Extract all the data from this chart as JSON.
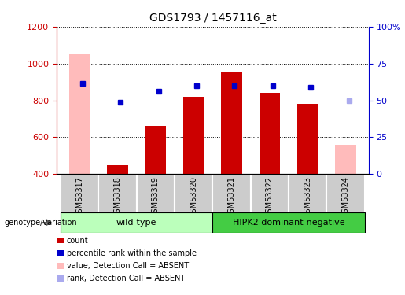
{
  "title": "GDS1793 / 1457116_at",
  "samples": [
    "GSM53317",
    "GSM53318",
    "GSM53319",
    "GSM53320",
    "GSM53321",
    "GSM53322",
    "GSM53323",
    "GSM53324"
  ],
  "bar_values": [
    null,
    450,
    660,
    820,
    950,
    840,
    780,
    null
  ],
  "absent_values": [
    1050,
    null,
    null,
    null,
    null,
    null,
    null,
    560
  ],
  "absent_color": "#ffbbbb",
  "bar_color": "#cc0000",
  "percentile_values": [
    890,
    790,
    850,
    880,
    880,
    880,
    870,
    null
  ],
  "percentile_absent_values": [
    null,
    null,
    null,
    null,
    null,
    null,
    null,
    800
  ],
  "percentile_color": "#0000cc",
  "percentile_absent_color": "#aaaaee",
  "ylim_left": [
    400,
    1200
  ],
  "ylim_right": [
    0,
    100
  ],
  "yticks_left": [
    400,
    600,
    800,
    1000,
    1200
  ],
  "yticks_right": [
    0,
    25,
    50,
    75,
    100
  ],
  "ytick_labels_right": [
    "0",
    "25",
    "50",
    "75",
    "100%"
  ],
  "groups": [
    {
      "label": "wild-type",
      "start": 0,
      "end": 3,
      "color": "#bbffbb"
    },
    {
      "label": "HIPK2 dominant-negative",
      "start": 4,
      "end": 7,
      "color": "#44cc44"
    }
  ],
  "genotype_label": "genotype/variation",
  "legend_items": [
    {
      "label": "count",
      "color": "#cc0000"
    },
    {
      "label": "percentile rank within the sample",
      "color": "#0000cc"
    },
    {
      "label": "value, Detection Call = ABSENT",
      "color": "#ffbbbb"
    },
    {
      "label": "rank, Detection Call = ABSENT",
      "color": "#aaaaee"
    }
  ],
  "bar_width": 0.55,
  "baseline": 400,
  "left_axis_color": "#cc0000",
  "right_axis_color": "#0000cc",
  "sample_box_color": "#cccccc",
  "plot_bg_color": "#ffffff"
}
